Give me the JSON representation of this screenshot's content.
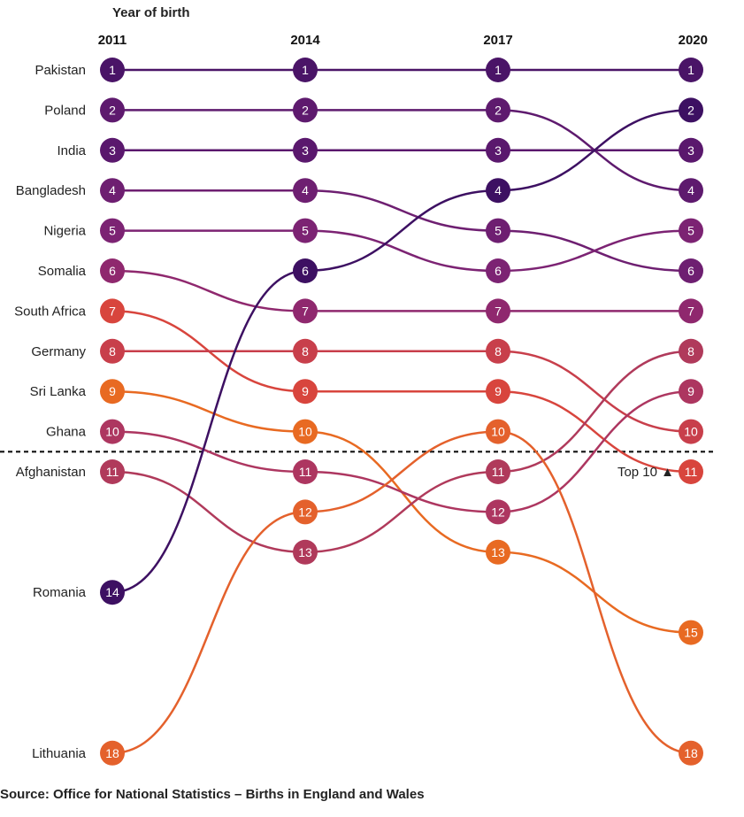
{
  "chart_data": {
    "type": "bump",
    "axis_title": "Year of birth",
    "years": [
      "2011",
      "2014",
      "2017",
      "2020"
    ],
    "rank_range": [
      1,
      18
    ],
    "cutoff": {
      "after_rank": 10,
      "label": "Top 10 ▲"
    },
    "series": [
      {
        "name": "Pakistan",
        "color": "#4a1467",
        "ranks": [
          1,
          1,
          1,
          1
        ]
      },
      {
        "name": "Poland",
        "color": "#5e1a6e",
        "ranks": [
          2,
          2,
          2,
          4
        ]
      },
      {
        "name": "India",
        "color": "#5a186d",
        "ranks": [
          3,
          3,
          3,
          3
        ]
      },
      {
        "name": "Bangladesh",
        "color": "#6e1f71",
        "ranks": [
          4,
          4,
          5,
          6
        ]
      },
      {
        "name": "Nigeria",
        "color": "#7c2373",
        "ranks": [
          5,
          5,
          6,
          5
        ]
      },
      {
        "name": "Somalia",
        "color": "#8f286e",
        "ranks": [
          6,
          7,
          7,
          7
        ]
      },
      {
        "name": "South Africa",
        "color": "#d8453d",
        "ranks": [
          7,
          9,
          9,
          11
        ]
      },
      {
        "name": "Germany",
        "color": "#c83f4b",
        "ranks": [
          8,
          8,
          8,
          10
        ]
      },
      {
        "name": "Sri Lanka",
        "color": "#e86a22",
        "ranks": [
          9,
          10,
          13,
          15
        ]
      },
      {
        "name": "Ghana",
        "color": "#ad3660",
        "ranks": [
          10,
          11,
          12,
          9
        ]
      },
      {
        "name": "Afghanistan",
        "color": "#b03a5b",
        "ranks": [
          11,
          13,
          11,
          8
        ]
      },
      {
        "name": "Romania",
        "color": "#3d1062",
        "ranks": [
          14,
          6,
          4,
          2
        ]
      },
      {
        "name": "Lithuania",
        "color": "#e4612c",
        "ranks": [
          18,
          12,
          10,
          18
        ]
      }
    ]
  },
  "source": "Source: Office for National Statistics – Births in England and Wales"
}
